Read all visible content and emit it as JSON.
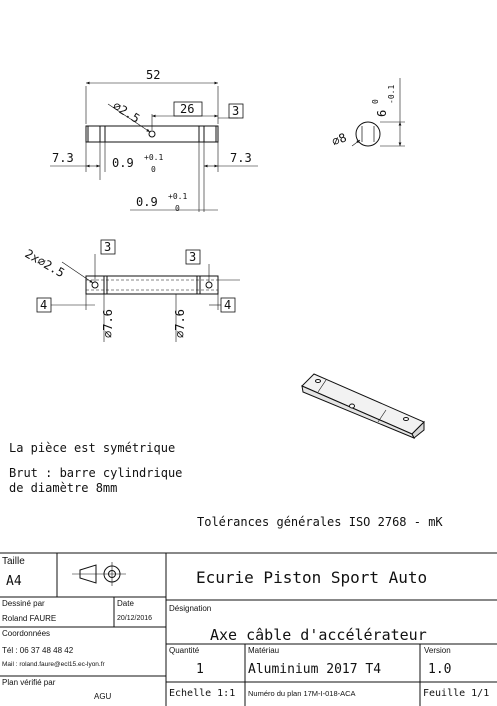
{
  "drawing": {
    "top_view": {
      "length": "52",
      "hole_dia": "⌀2.5",
      "hole_pos": "26",
      "chamfer": "3",
      "slot_left": "7.3",
      "slot_right": "7.3",
      "slot_width": "0.9",
      "tol_upper": "+0.1",
      "tol_lower": "0",
      "slot_width_2": "0.9",
      "tol_upper_2": "+0.1",
      "tol_lower_2": "0"
    },
    "end_view": {
      "dia": "⌀8",
      "flat": "6",
      "flat_tol_upper": "0",
      "flat_tol_lower": "-0.1"
    },
    "side_view": {
      "holes": "2x⌀2.5",
      "left_box": "3",
      "right_box": "3",
      "left_edge": "4",
      "right_edge": "4",
      "groove_left": "⌀7.6",
      "groove_right": "⌀7.6"
    }
  },
  "notes": {
    "symmetry": "La pièce est symétrique",
    "raw_line1": "Brut : barre cylindrique",
    "raw_line2": "de diamètre 8mm",
    "tolerances": "Tolérances générales ISO 2768 - mK"
  },
  "title_block": {
    "taille_label": "Taille",
    "taille_value": "A4",
    "company": "Ecurie Piston Sport Auto",
    "dessine_label": "Dessiné par",
    "dessine_value": "Roland FAURE",
    "date_label": "Date",
    "date_value": "20/12/2016",
    "coord_label": "Coordonnées",
    "tel": "Tél : 06 37 48 48 42",
    "mail": "Mail : roland.faure@ecl15.ec-lyon.fr",
    "verifie_label": "Plan vérifié par",
    "verifie_value": "AGU",
    "designation_label": "Désignation",
    "designation_value": "Axe câble d'accélérateur",
    "quantite_label": "Quantité",
    "quantite_value": "1",
    "materiau_label": "Matériau",
    "materiau_value": "Aluminium 2017 T4",
    "version_label": "Version",
    "version_value": "1.0",
    "echelle": "Echelle 1:1",
    "numero": "Numéro du plan 17M-I-018-ACA",
    "feuille": "Feuille 1/1"
  }
}
